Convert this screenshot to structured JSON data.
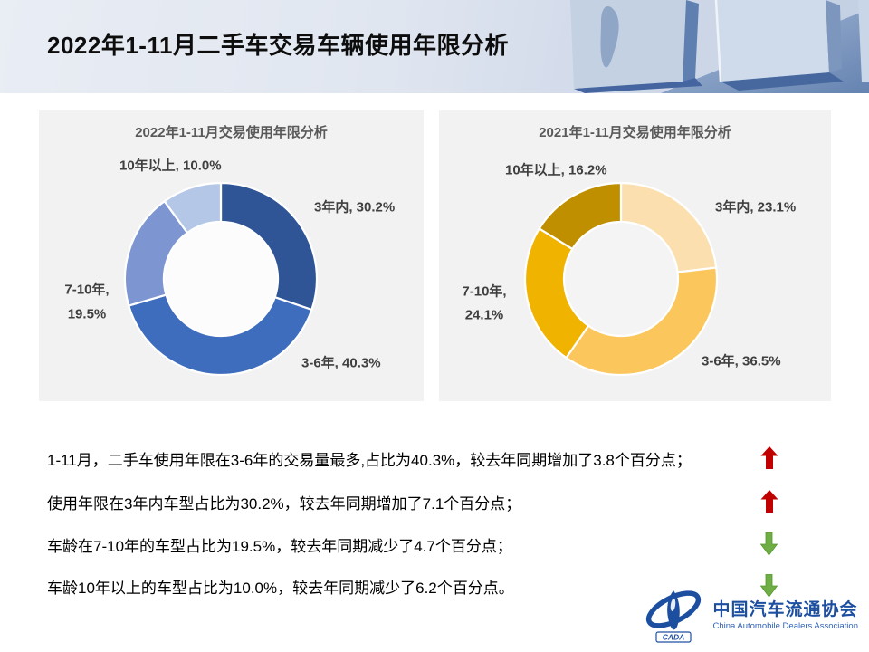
{
  "header": {
    "title": "2022年1-11月二手车交易车辆使用年限分析"
  },
  "chart_data": [
    {
      "type": "pie",
      "subtype": "donut",
      "title": "2022年1-11月交易使用年限分析",
      "categories": [
        "3年内",
        "3-6年",
        "7-10年",
        "10年以上"
      ],
      "values": [
        30.2,
        40.3,
        19.5,
        10.0
      ],
      "unit": "%",
      "colors": [
        "#2f5597",
        "#3e6dbe",
        "#7d96d2",
        "#b4c7e7"
      ],
      "labels": [
        "3年内, 30.2%",
        "3-6年, 40.3%",
        "7-10年,|19.5%",
        "10年以上, 10.0%"
      ],
      "start_angle_deg": 0,
      "direction": "clockwise",
      "legend": "none",
      "label_color": "#3f3f3f",
      "hole_color": "#fcfcfc"
    },
    {
      "type": "pie",
      "subtype": "donut",
      "title": "2021年1-11月交易使用年限分析",
      "categories": [
        "3年内",
        "3-6年",
        "7-10年",
        "10年以上"
      ],
      "values": [
        23.1,
        36.5,
        24.1,
        16.2
      ],
      "unit": "%",
      "colors": [
        "#fbdfae",
        "#fbc75d",
        "#f0b400",
        "#bf8f00"
      ],
      "labels": [
        "3年内, 23.1%",
        "3-6年, 36.5%",
        "7-10年,|24.1%",
        "10年以上, 16.2%"
      ],
      "start_angle_deg": 0,
      "direction": "clockwise",
      "legend": "none",
      "label_color": "#3f3f3f",
      "hole_color": "#f4f4f4"
    }
  ],
  "summary": {
    "up_color": "#c00000",
    "down_color": "#6fae44",
    "lines": [
      {
        "text": "1-11月，二手车使用年限在3-6年的交易量最多,占比为40.3%，较去年同期增加了3.8个百分点；",
        "trend": "up"
      },
      {
        "text": "使用年限在3年内车型占比为30.2%，较去年同期增加了7.1个百分点；",
        "trend": "up"
      },
      {
        "text": "车龄在7-10年的车型占比为19.5%，较去年同期减少了4.7个百分点；",
        "trend": "down"
      },
      {
        "text": "车龄10年以上的车型占比为10.0%，较去年同期减少了6.2个百分点。",
        "trend": "down"
      }
    ]
  },
  "footer": {
    "logo_badge": "CADA",
    "logo_cn": "中国汽车流通协会",
    "logo_en": "China Automobile Dealers Association",
    "logo_color": "#1d4fa0"
  }
}
